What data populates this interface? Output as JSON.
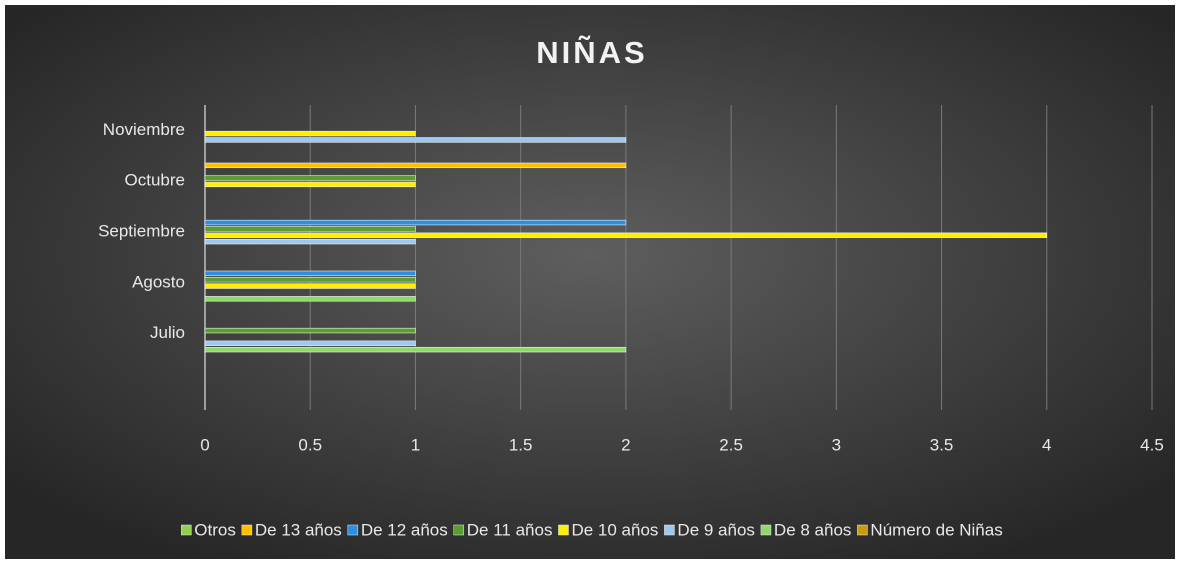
{
  "chart_data": {
    "type": "bar",
    "orientation": "horizontal",
    "title": "NIÑAS",
    "categories": [
      null,
      "Julio",
      "Agosto",
      "Septiembre",
      "Octubre",
      "Noviembre"
    ],
    "series": [
      {
        "name": "Otros",
        "color": "#92d050",
        "values": [
          null,
          null,
          null,
          null,
          null,
          null
        ]
      },
      {
        "name": "De 13 años",
        "color": "#ffc000",
        "values": [
          null,
          null,
          null,
          null,
          2,
          null
        ]
      },
      {
        "name": "De 12 años",
        "color": "#2e8ee0",
        "values": [
          null,
          null,
          1,
          2,
          null,
          null
        ]
      },
      {
        "name": "De 11 años",
        "color": "#5a9e2f",
        "values": [
          null,
          1,
          1,
          1,
          1,
          null
        ]
      },
      {
        "name": "De 10 años",
        "color": "#ffee00",
        "values": [
          null,
          null,
          1,
          4,
          1,
          1
        ]
      },
      {
        "name": "De 9 años",
        "color": "#9dc8f0",
        "values": [
          null,
          1,
          null,
          1,
          null,
          2
        ]
      },
      {
        "name": "De 8 años",
        "color": "#8fd86a",
        "values": [
          null,
          2,
          1,
          null,
          null,
          null
        ]
      },
      {
        "name": "Número de Niñas",
        "color": "#c89a10",
        "values": [
          null,
          null,
          null,
          null,
          null,
          null
        ]
      }
    ],
    "xlim": [
      0,
      4.5
    ],
    "xticks": [
      0,
      0.5,
      1,
      1.5,
      2,
      2.5,
      3,
      3.5,
      4,
      4.5
    ],
    "grid": true,
    "legend": "bottom"
  }
}
